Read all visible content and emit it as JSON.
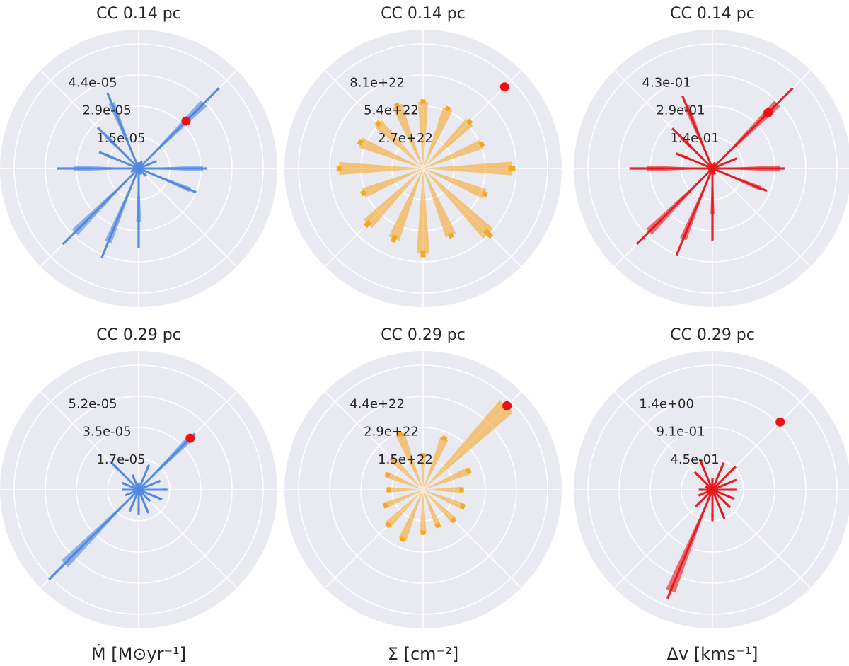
{
  "panels_note": "",
  "colors": {
    "blue": "#4f88e0",
    "orange": "#f5a31a",
    "red": "#e8171b",
    "face": "#e9e9f2",
    "grid": "#ffffff",
    "dot": "#ee1111"
  },
  "chart_data": [
    {
      "type": "polar-bar",
      "title": "CC 0.14 pc",
      "color": "blue",
      "rticks": [
        "1.5e-05",
        "2.9e-05",
        "4.4e-05"
      ],
      "rmax": 5.8e-05,
      "theta_deg": [
        0,
        22.5,
        45,
        67.5,
        90,
        112.5,
        135,
        157.5,
        180,
        202.5,
        225,
        247.5,
        270,
        292.5,
        315,
        337.5
      ],
      "values": [
        3e-05,
        8e-06,
        4.3e-05,
        3e-06,
        2e-06,
        3.3e-05,
        2.1e-05,
        1.7e-05,
        3e-05,
        3e-06,
        4.2e-05,
        3.7e-05,
        2.5e-05,
        2e-06,
        4e-06,
        2.6e-05
      ],
      "errors": [
        2e-06,
        1e-06,
        1e-05,
        1e-06,
        1e-06,
        5e-06,
        6e-06,
        3e-06,
        8e-06,
        1e-06,
        8e-06,
        8e-06,
        1.2e-05,
        1e-06,
        1e-06,
        3e-06
      ],
      "dot": {
        "theta_deg": 45,
        "value": 3.12e-05
      },
      "xlabel": ""
    },
    {
      "type": "polar-bar",
      "title": "CC 0.14 pc",
      "color": "orange",
      "rticks": [
        "2.7e+22",
        "5.4e+22",
        "8.1e+22"
      ],
      "rmax": 1.08e+23,
      "theta_deg": [
        0,
        22.5,
        45,
        67.5,
        90,
        112.5,
        135,
        157.5,
        180,
        202.5,
        225,
        247.5,
        270,
        292.5,
        315,
        337.5
      ],
      "values": [
        7.7e+22,
        5.5e+22,
        5.7e+22,
        5.6e+22,
        5.8e+22,
        5.9e+22,
        5.5e+22,
        5.9e+22,
        7.3e+22,
        5.6e+22,
        6.8e+22,
        6.6e+22,
        7.4e+22,
        6.3e+22,
        8e+22,
        5.8e+22
      ],
      "errors": [
        3e+21,
        2e+21,
        2e+21,
        2e+21,
        2e+21,
        2e+21,
        2e+21,
        2e+21,
        2e+21,
        2e+21,
        3e+21,
        3e+21,
        3e+21,
        2e+21,
        4e+21,
        2e+21
      ],
      "dot": {
        "theta_deg": 45,
        "value": 1e+23
      },
      "xlabel": ""
    },
    {
      "type": "polar-bar",
      "title": "CC 0.14 pc",
      "color": "red",
      "rticks": [
        "1.4e-01",
        "2.9e-01",
        "4.3e-01"
      ],
      "rmax": 0.57,
      "theta_deg": [
        0,
        22.5,
        45,
        67.5,
        90,
        112.5,
        135,
        157.5,
        180,
        202.5,
        225,
        247.5,
        270,
        292.5,
        315,
        337.5
      ],
      "values": [
        0.31,
        0.11,
        0.42,
        0.02,
        0.01,
        0.31,
        0.2,
        0.15,
        0.3,
        0.01,
        0.41,
        0.35,
        0.21,
        0.02,
        0.01,
        0.24
      ],
      "errors": [
        0.02,
        0.01,
        0.1,
        0.01,
        0.01,
        0.05,
        0.06,
        0.03,
        0.08,
        0.01,
        0.08,
        0.08,
        0.12,
        0.01,
        0.01,
        0.03
      ],
      "dot": {
        "theta_deg": 45,
        "value": 0.36
      },
      "xlabel": ""
    },
    {
      "type": "polar-bar",
      "title": "CC 0.29 pc",
      "color": "blue",
      "rticks": [
        "1.7e-05",
        "3.5e-05",
        "5.2e-05"
      ],
      "rmax": 6.9e-05,
      "theta_deg": [
        0,
        22.5,
        45,
        67.5,
        90,
        112.5,
        135,
        157.5,
        180,
        202.5,
        225,
        247.5,
        270,
        292.5,
        315,
        337.5
      ],
      "values": [
        1.5e-05,
        1.2e-05,
        4e-05,
        1.4e-05,
        3e-06,
        8e-06,
        1.9e-05,
        9e-06,
        8e-06,
        7e-06,
        5.8e-05,
        1.1e-05,
        1.2e-05,
        1.2e-05,
        8e-06,
        1.3e-05
      ],
      "errors": [
        1e-06,
        1e-06,
        4e-06,
        1e-06,
        1e-06,
        1e-06,
        3e-06,
        1e-06,
        1e-06,
        1e-06,
        1.5e-05,
        2e-06,
        2e-06,
        2e-06,
        1e-06,
        1e-06
      ],
      "dot": {
        "theta_deg": 45,
        "value": 4.04e-05
      },
      "xlabel": "Ṁ [M⊙yr⁻¹]"
    },
    {
      "type": "polar-bar",
      "title": "CC 0.29 pc",
      "color": "orange",
      "rticks": [
        "1.5e+22",
        "2.9e+22",
        "4.4e+22"
      ],
      "rmax": 5.8e+22,
      "theta_deg": [
        0,
        22.5,
        45,
        67.5,
        90,
        112.5,
        135,
        157.5,
        180,
        202.5,
        225,
        247.5,
        270,
        292.5,
        315,
        337.5
      ],
      "values": [
        1.8e+22,
        2.3e+22,
        5.5e+22,
        2.6e+22,
        1.6e+22,
        2.8e+22,
        2e+22,
        1.8e+22,
        1.6e+22,
        1.9e+22,
        2.3e+22,
        2.5e+22,
        2e+22,
        1.8e+22,
        2e+22,
        2e+22
      ],
      "errors": [
        1e+21,
        1e+21,
        2e+21,
        1e+21,
        1e+21,
        1e+21,
        1e+21,
        1e+21,
        1e+21,
        1e+21,
        1e+21,
        1e+21,
        1e+21,
        1e+21,
        1e+21,
        1e+21
      ],
      "dot": {
        "theta_deg": 45,
        "value": 5.53e+22
      },
      "xlabel": "Σ [cm⁻²]"
    },
    {
      "type": "polar-bar",
      "title": "CC 0.29 pc",
      "color": "red",
      "rticks": [
        "4.5e-01",
        "9.1e-01",
        "1.4e+00"
      ],
      "rmax": 1.82,
      "theta_deg": [
        0,
        22.5,
        45,
        67.5,
        90,
        112.5,
        135,
        157.5,
        180,
        202.5,
        225,
        247.5,
        270,
        292.5,
        315,
        337.5
      ],
      "values": [
        0.3,
        0.34,
        0.45,
        0.37,
        0.14,
        0.45,
        0.32,
        0.1,
        0.17,
        0.19,
        0.3,
        1.6,
        0.4,
        0.4,
        0.32,
        0.3
      ],
      "errors": [
        0.05,
        0.04,
        0.03,
        0.06,
        0.03,
        0.03,
        0.05,
        0.02,
        0.03,
        0.03,
        0.05,
        0.12,
        0.06,
        0.06,
        0.05,
        0.05
      ],
      "dot": {
        "theta_deg": 45,
        "value": 1.4
      },
      "xlabel": "Δv [kms⁻¹]"
    }
  ]
}
